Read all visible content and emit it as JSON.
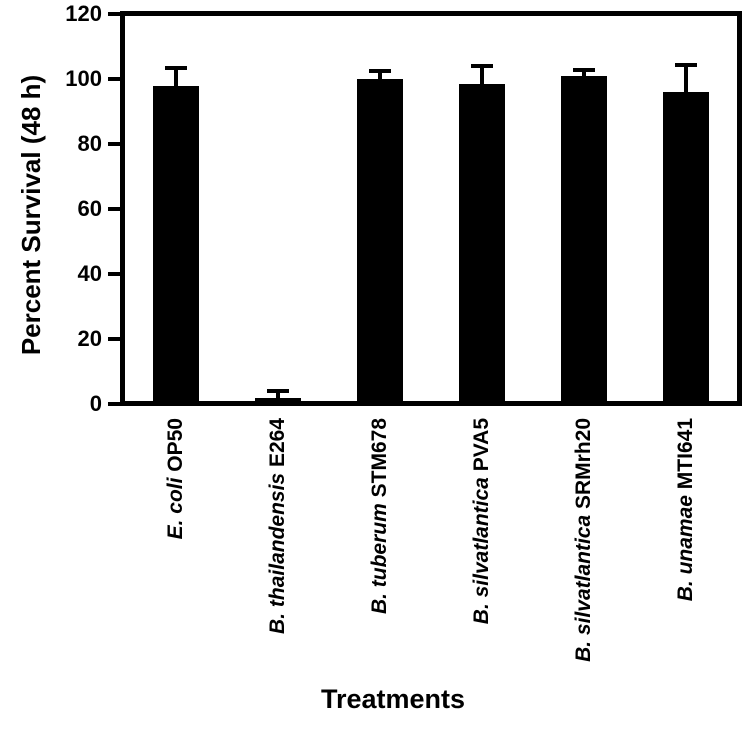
{
  "figure": {
    "background_color": "#ffffff",
    "bar_color": "#000000",
    "axis_color": "#000000",
    "text_color": "#000000"
  },
  "chart_data": {
    "type": "bar",
    "title": "",
    "xlabel": "Treatments",
    "ylabel": "Percent Survival (48 h)",
    "ylim": [
      0,
      120
    ],
    "yticks": [
      0,
      20,
      40,
      60,
      80,
      100,
      120
    ],
    "grid": false,
    "legend_position": "none",
    "error_bars": "upper-only",
    "categories": [
      "E. coli OP50",
      "B. thailandensis E264",
      "B. tuberum STM678",
      "B. silvatlantica PVA5",
      "B. silvatlantica SRMrh20",
      "B. unamae MTI641"
    ],
    "category_parts": [
      {
        "species": "E. coli",
        "strain": "OP50"
      },
      {
        "species": "B. thailandensis",
        "strain": "E264"
      },
      {
        "species": "B. tuberum",
        "strain": "STM678"
      },
      {
        "species": "B. silvatlantica",
        "strain": "PVA5"
      },
      {
        "species": "B. silvatlantica",
        "strain": "SRMrh20"
      },
      {
        "species": "B. unamae",
        "strain": "MTI641"
      }
    ],
    "values": [
      97,
      1,
      99,
      97.5,
      100,
      95
    ],
    "errors_upper": [
      5.5,
      2,
      2.5,
      5.5,
      2,
      8.5
    ]
  }
}
